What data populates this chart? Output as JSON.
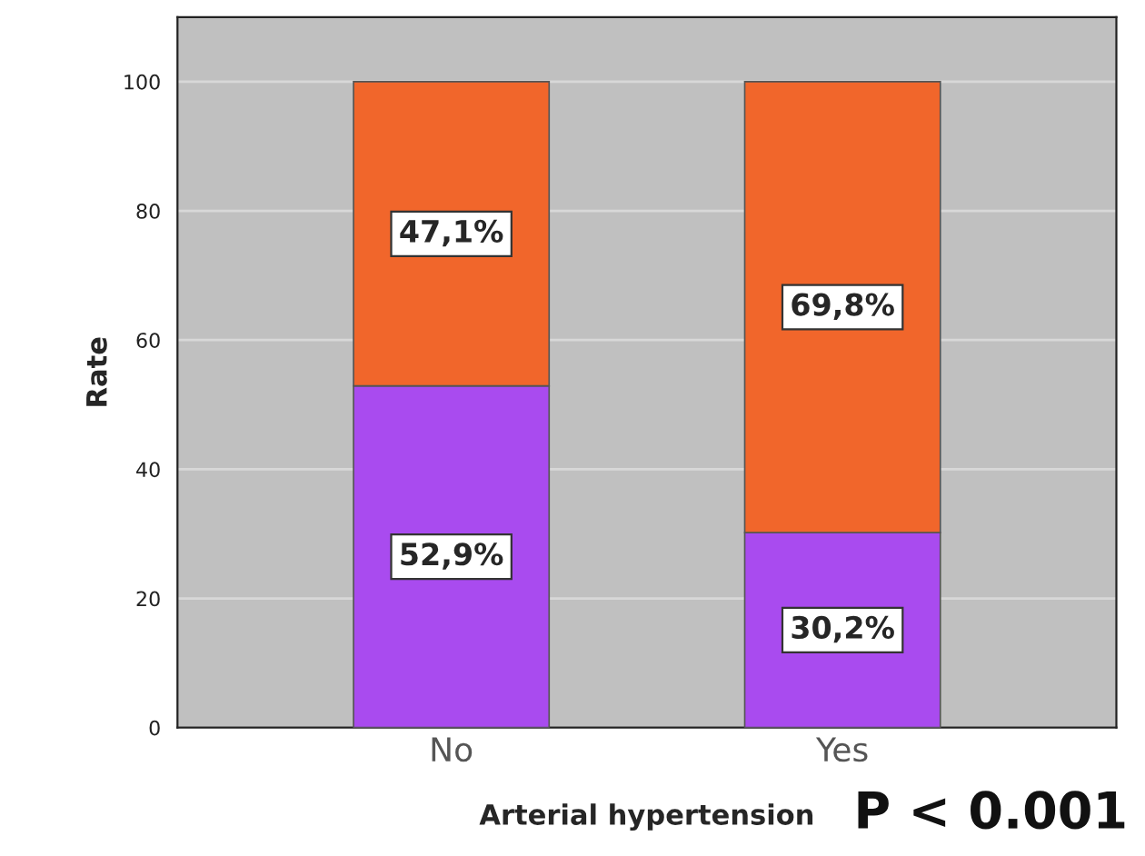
{
  "chart_data": {
    "type": "bar",
    "stacked": true,
    "xlabel": "Arterial hypertension",
    "ylabel": "Rate",
    "categories": [
      "No",
      "Yes"
    ],
    "series": [
      {
        "color": "#a94bef",
        "values": [
          52.9,
          30.2
        ],
        "value_labels": [
          "52,9%",
          "30,2%"
        ]
      },
      {
        "color": "#f1662b",
        "values": [
          47.1,
          69.8
        ],
        "value_labels": [
          "47,1%",
          "69,8%"
        ]
      }
    ],
    "ylim": [
      0,
      110
    ],
    "yticks": [
      0,
      20,
      40,
      60,
      80,
      100
    ],
    "grid": "y",
    "legend": false,
    "annotations": [
      "P < 0.001"
    ]
  }
}
